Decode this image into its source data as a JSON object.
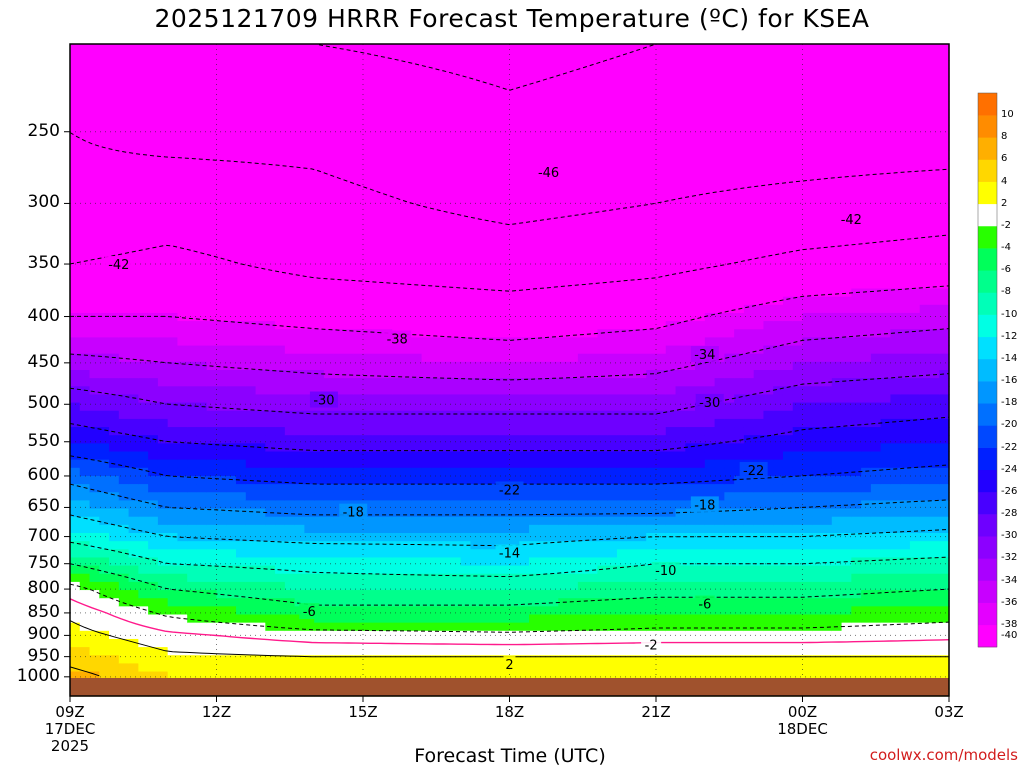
{
  "title": "2025121709 HRRR Forecast Temperature (ºC) for KSEA",
  "credit": "coolwx.com/models",
  "chart_data": {
    "type": "contour",
    "title": "2025121709 HRRR Forecast Temperature (ºC) for KSEA",
    "xlabel": "Forecast Time (UTC)",
    "ylabel": "",
    "x_ticks": [
      {
        "hour": 0,
        "label": "09Z",
        "sub": [
          "17DEC",
          "2025"
        ]
      },
      {
        "hour": 3,
        "label": "12Z",
        "sub": []
      },
      {
        "hour": 6,
        "label": "15Z",
        "sub": []
      },
      {
        "hour": 9,
        "label": "18Z",
        "sub": []
      },
      {
        "hour": 12,
        "label": "21Z",
        "sub": []
      },
      {
        "hour": 15,
        "label": "00Z",
        "sub": [
          "18DEC"
        ]
      },
      {
        "hour": 18,
        "label": "03Z",
        "sub": []
      }
    ],
    "xlim": [
      0,
      18
    ],
    "y_ticks": [
      250,
      300,
      350,
      400,
      450,
      500,
      550,
      600,
      650,
      700,
      750,
      800,
      850,
      900,
      950,
      1000
    ],
    "ylim": [
      1050,
      200
    ],
    "surface_pressure": 1003,
    "grid": true,
    "colorbar": {
      "levels": [
        -40,
        -38,
        -36,
        -34,
        -32,
        -30,
        -28,
        -26,
        -24,
        -22,
        -20,
        -18,
        -16,
        -14,
        -12,
        -10,
        -8,
        -6,
        -4,
        -2,
        2,
        4,
        6,
        8,
        10
      ],
      "colors": [
        "#ff00ff",
        "#e400ff",
        "#c800ff",
        "#aa00ff",
        "#8c00ff",
        "#6e00ff",
        "#4800ff",
        "#2200ff",
        "#0020ff",
        "#0048ff",
        "#0070ff",
        "#0096ff",
        "#00bcff",
        "#00e0ff",
        "#00ffe4",
        "#00ffb8",
        "#00ff8c",
        "#00ff5a",
        "#28ff00",
        "#ffffff",
        "#ffff00",
        "#ffd700",
        "#ffaf00",
        "#ff8c00",
        "#ff7000"
      ]
    },
    "series": [
      {
        "hour": 0,
        "profile": [
          [
            200,
            -50
          ],
          [
            250,
            -46
          ],
          [
            300,
            -45
          ],
          [
            350,
            -42
          ],
          [
            400,
            -38
          ],
          [
            450,
            -33
          ],
          [
            500,
            -28
          ],
          [
            550,
            -24
          ],
          [
            600,
            -19
          ],
          [
            650,
            -15
          ],
          [
            700,
            -11
          ],
          [
            750,
            -6
          ],
          [
            800,
            -1
          ],
          [
            850,
            1.5
          ],
          [
            900,
            3
          ],
          [
            950,
            5
          ],
          [
            1000,
            7
          ]
        ]
      },
      {
        "hour": 2,
        "profile": [
          [
            200,
            -49
          ],
          [
            250,
            -47
          ],
          [
            300,
            -44
          ],
          [
            350,
            -41
          ],
          [
            400,
            -38
          ],
          [
            450,
            -34
          ],
          [
            500,
            -30
          ],
          [
            550,
            -26
          ],
          [
            600,
            -22
          ],
          [
            650,
            -18
          ],
          [
            700,
            -14
          ],
          [
            750,
            -10
          ],
          [
            800,
            -6
          ],
          [
            850,
            -2.5
          ],
          [
            900,
            0.5
          ],
          [
            950,
            2.5
          ],
          [
            1000,
            4
          ]
        ]
      },
      {
        "hour": 5,
        "profile": [
          [
            200,
            -50
          ],
          [
            250,
            -47
          ],
          [
            300,
            -45
          ],
          [
            350,
            -43
          ],
          [
            400,
            -39
          ],
          [
            450,
            -35
          ],
          [
            500,
            -31
          ],
          [
            550,
            -27
          ],
          [
            600,
            -23
          ],
          [
            650,
            -19
          ],
          [
            700,
            -15
          ],
          [
            750,
            -11
          ],
          [
            800,
            -8
          ],
          [
            850,
            -5
          ],
          [
            900,
            -1
          ],
          [
            950,
            2
          ],
          [
            1000,
            3
          ]
        ]
      },
      {
        "hour": 9,
        "profile": [
          [
            200,
            -51
          ],
          [
            250,
            -49
          ],
          [
            300,
            -47
          ],
          [
            350,
            -44
          ],
          [
            400,
            -40
          ],
          [
            450,
            -36
          ],
          [
            500,
            -31
          ],
          [
            550,
            -27
          ],
          [
            600,
            -23
          ],
          [
            650,
            -19
          ],
          [
            700,
            -15
          ],
          [
            750,
            -12
          ],
          [
            800,
            -8
          ],
          [
            850,
            -5
          ],
          [
            900,
            -1.5
          ],
          [
            950,
            2
          ],
          [
            1000,
            3
          ]
        ]
      },
      {
        "hour": 12,
        "profile": [
          [
            200,
            -50
          ],
          [
            250,
            -48
          ],
          [
            300,
            -46
          ],
          [
            350,
            -43
          ],
          [
            400,
            -39
          ],
          [
            450,
            -35
          ],
          [
            500,
            -31
          ],
          [
            550,
            -27
          ],
          [
            600,
            -23
          ],
          [
            650,
            -19
          ],
          [
            700,
            -14
          ],
          [
            750,
            -10
          ],
          [
            800,
            -7
          ],
          [
            850,
            -4
          ],
          [
            900,
            -1
          ],
          [
            950,
            2
          ],
          [
            1000,
            3
          ]
        ]
      },
      {
        "hour": 15,
        "profile": [
          [
            200,
            -50
          ],
          [
            250,
            -48
          ],
          [
            300,
            -45
          ],
          [
            350,
            -41
          ],
          [
            400,
            -36
          ],
          [
            450,
            -32
          ],
          [
            500,
            -28
          ],
          [
            550,
            -25
          ],
          [
            600,
            -22
          ],
          [
            650,
            -18
          ],
          [
            700,
            -14
          ],
          [
            750,
            -10
          ],
          [
            800,
            -7
          ],
          [
            850,
            -4
          ],
          [
            900,
            -1
          ],
          [
            950,
            2
          ],
          [
            1000,
            3
          ]
        ]
      },
      {
        "hour": 18,
        "profile": [
          [
            200,
            -50
          ],
          [
            250,
            -48
          ],
          [
            300,
            -44
          ],
          [
            350,
            -40
          ],
          [
            400,
            -35
          ],
          [
            450,
            -31
          ],
          [
            500,
            -27
          ],
          [
            550,
            -24
          ],
          [
            600,
            -21
          ],
          [
            650,
            -17
          ],
          [
            700,
            -13
          ],
          [
            750,
            -9
          ],
          [
            800,
            -6
          ],
          [
            850,
            -3
          ],
          [
            900,
            -0.5
          ],
          [
            950,
            2
          ],
          [
            1000,
            3
          ]
        ]
      }
    ],
    "contour_labels": [
      {
        "hour": 9.8,
        "p": 277,
        "text": "-46"
      },
      {
        "hour": 16,
        "p": 312,
        "text": "-42"
      },
      {
        "hour": 1,
        "p": 350,
        "text": "-42"
      },
      {
        "hour": 6.7,
        "p": 423,
        "text": "-38"
      },
      {
        "hour": 13,
        "p": 440,
        "text": "-34"
      },
      {
        "hour": 5.2,
        "p": 494,
        "text": "-30"
      },
      {
        "hour": 13.1,
        "p": 497,
        "text": "-30"
      },
      {
        "hour": 14,
        "p": 591,
        "text": "-22"
      },
      {
        "hour": 9,
        "p": 621,
        "text": "-22"
      },
      {
        "hour": 13,
        "p": 645,
        "text": "-18"
      },
      {
        "hour": 5.8,
        "p": 657,
        "text": "-18"
      },
      {
        "hour": 9,
        "p": 729,
        "text": "-14"
      },
      {
        "hour": 12.2,
        "p": 762,
        "text": "-10"
      },
      {
        "hour": 13,
        "p": 830,
        "text": "-6"
      },
      {
        "hour": 4.9,
        "p": 846,
        "text": "-6"
      },
      {
        "hour": 11.9,
        "p": 921,
        "text": "-2"
      },
      {
        "hour": 9,
        "p": 968,
        "text": "2"
      }
    ]
  }
}
